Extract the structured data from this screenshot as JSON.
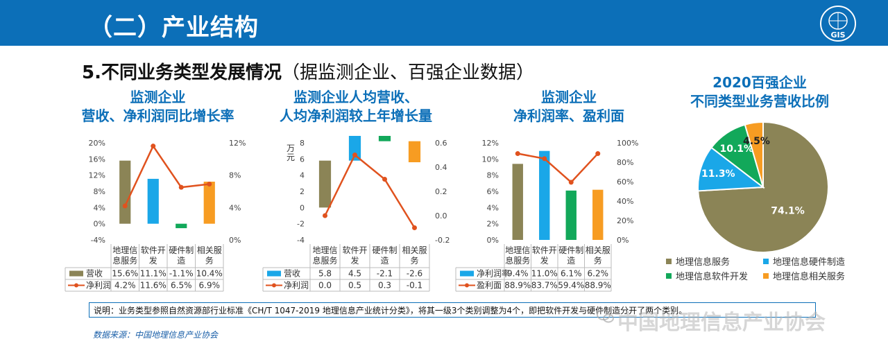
{
  "header": {
    "title": "（二）产业结构",
    "logo_text": "GIS"
  },
  "section": {
    "title_bold": "5.不同业务类型发展情况",
    "title_rest": "（据监测企业、百强企业数据）"
  },
  "chart_data": [
    {
      "type": "bar",
      "title_line1": "监测企业",
      "title_line2": "营收、净利润同比增长率",
      "categories": [
        "地理信息服务",
        "软件开发",
        "硬件制造",
        "相关服务"
      ],
      "category_lines": [
        [
          "地理信",
          "息服务"
        ],
        [
          "软件开",
          "发"
        ],
        [
          "硬件制",
          "造"
        ],
        [
          "相关服",
          "务"
        ]
      ],
      "ylim": [
        -4,
        20
      ],
      "yticks": [
        "-4%",
        "0%",
        "4%",
        "8%",
        "12%",
        "16%",
        "20%"
      ],
      "y2lim": [
        0,
        12
      ],
      "y2ticks": [
        "0%",
        "4%",
        "8%",
        "12%"
      ],
      "series": [
        {
          "name": "营收",
          "kind": "bar",
          "values": [
            15.6,
            11.1,
            -1.1,
            10.4
          ],
          "labels": [
            "15.6%",
            "11.1%",
            "-1.1%",
            "10.4%"
          ]
        },
        {
          "name": "净利润",
          "kind": "line",
          "values": [
            4.2,
            11.6,
            6.5,
            6.9
          ],
          "labels": [
            "4.2%",
            "11.6%",
            "6.5%",
            "6.9%"
          ]
        }
      ],
      "bar_colors": [
        "#8b8456",
        "#1aa7e8",
        "#12a85a",
        "#f79c22"
      ],
      "legend_bar_color": "#8b8456"
    },
    {
      "type": "bar",
      "title_line1": "监测企业人均营收、",
      "title_line2": "人均净利润较上年增长量",
      "ylabel": "万元",
      "categories": [
        "地理信息服务",
        "软件开发",
        "硬件制造",
        "相关服务"
      ],
      "category_lines": [
        [
          "地理信",
          "息服务"
        ],
        [
          "软件开",
          "发"
        ],
        [
          "硬件制",
          "造"
        ],
        [
          "相关服",
          "务"
        ]
      ],
      "ylim": [
        -4,
        8
      ],
      "yticks": [
        "-4",
        "-2",
        "0",
        "2",
        "4",
        "6",
        "8"
      ],
      "y2lim": [
        -0.2,
        0.6
      ],
      "y2ticks": [
        "-0.2",
        "0.0",
        "0.2",
        "0.4",
        "0.6"
      ],
      "series": [
        {
          "name": "营收",
          "kind": "waterfall",
          "values": [
            5.8,
            4.5,
            -2.1,
            -2.6
          ],
          "labels": [
            "5.8",
            "4.5",
            "-2.1",
            "-2.6"
          ]
        },
        {
          "name": "净利润",
          "kind": "line",
          "values": [
            0.0,
            0.5,
            0.3,
            -0.1
          ],
          "labels": [
            "0.0",
            "0.5",
            "0.3",
            "-0.1"
          ]
        }
      ],
      "bar_colors": [
        "#8b8456",
        "#1aa7e8",
        "#12a85a",
        "#f79c22"
      ],
      "legend_bar_color": "#1aa7e8"
    },
    {
      "type": "bar",
      "title_line1": "监测企业",
      "title_line2": "净利润率、盈利面",
      "categories": [
        "地理信息服务",
        "软件开发",
        "硬件制造",
        "相关服务"
      ],
      "category_lines": [
        [
          "地理信",
          "息服务"
        ],
        [
          "软件开",
          "发"
        ],
        [
          "硬件制",
          "造"
        ],
        [
          "相关服",
          "务"
        ]
      ],
      "ylim": [
        0,
        12
      ],
      "yticks": [
        "0%",
        "2%",
        "4%",
        "6%",
        "8%",
        "10%",
        "12%"
      ],
      "y2lim": [
        0,
        100
      ],
      "y2ticks": [
        "0%",
        "20%",
        "40%",
        "60%",
        "80%",
        "100%"
      ],
      "series": [
        {
          "name": "净利润率",
          "kind": "bar",
          "values": [
            9.4,
            11.0,
            6.1,
            6.2
          ],
          "labels": [
            "9.4%",
            "11.0%",
            "6.1%",
            "6.2%"
          ]
        },
        {
          "name": "盈利面",
          "kind": "line",
          "values": [
            88.9,
            83.7,
            59.4,
            88.9
          ],
          "labels": [
            "88.9%",
            "83.7%",
            "59.4%",
            "88.9%"
          ]
        }
      ],
      "bar_colors": [
        "#8b8456",
        "#1aa7e8",
        "#12a85a",
        "#f79c22"
      ],
      "legend_bar_color": "#1aa7e8"
    },
    {
      "type": "pie",
      "title_line1": "2020百强企业",
      "title_line2": "不同类型业务营收比例",
      "slices": [
        {
          "name": "地理信息服务",
          "value": 74.1,
          "label": "74.1%",
          "color": "#8b8456"
        },
        {
          "name": "地理信息硬件制造",
          "value": 11.3,
          "label": "11.3%",
          "color": "#1aa7e8"
        },
        {
          "name": "地理信息软件开发",
          "value": 10.1,
          "label": "10.1%",
          "color": "#12a85a"
        },
        {
          "name": "地理信息相关服务",
          "value": 4.5,
          "label": "4.5%",
          "color": "#f79c22"
        }
      ],
      "legend_order": [
        "地理信息服务",
        "地理信息硬件制造",
        "地理信息软件开发",
        "地理信息相关服务"
      ]
    }
  ],
  "line_color": "#e0521e",
  "footer": {
    "note": "说明：业务类型参照自然资源部行业标准《CH/T 1047-2019 地理信息产业统计分类》，将其一级3个类别调整为4个，即把软件开发与硬件制造分开了两个类别。",
    "source": "数据来源：中国地理信息产业协会",
    "watermark": "中国地理信息产业协会"
  }
}
